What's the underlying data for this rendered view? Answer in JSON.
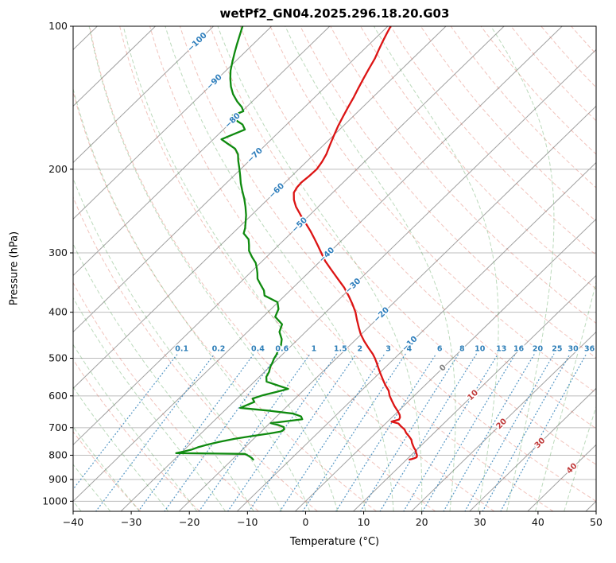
{
  "chart_data": {
    "type": "line",
    "chart_kind": "skewt_log_p_sounding",
    "title": "wetPf2_GN04.2025.296.18.20.G03",
    "xlabel": "Temperature (°C)",
    "ylabel": "Pressure (hPa)",
    "xlim": [
      -40,
      50
    ],
    "pressure_lim": [
      100,
      1050
    ],
    "x_ticks": [
      -40,
      -30,
      -20,
      -10,
      0,
      10,
      20,
      30,
      40,
      50
    ],
    "p_ticks": [
      100,
      200,
      300,
      400,
      500,
      600,
      700,
      800,
      900,
      1000
    ],
    "skew_factor": 1.03,
    "grid": true,
    "palette": {
      "temperature": "#dc1414",
      "dewpoint": "#0f8a0f",
      "isotherm": "#a0a0a0",
      "grid": "#bcbcbc",
      "dry_adiabat": "#d9604f",
      "moist_adiabat": "#4f9d4f",
      "mixing": "#2f7fb8",
      "label_cold": "#2e7ebc",
      "label_zero": "#7f7f7f",
      "label_warm": "#c03b3b",
      "frame": "#000000"
    },
    "isotherms": {
      "values": [
        -120,
        -110,
        -100,
        -90,
        -80,
        -70,
        -60,
        -50,
        -40,
        -30,
        -20,
        -10,
        0,
        10,
        20,
        30,
        40,
        50
      ]
    },
    "isotherm_labels": [
      {
        "t": -100,
        "p": 108
      },
      {
        "t": -90,
        "p": 131
      },
      {
        "t": -80,
        "p": 158
      },
      {
        "t": -70,
        "p": 187
      },
      {
        "t": -60,
        "p": 222
      },
      {
        "t": -50,
        "p": 262
      },
      {
        "t": -40,
        "p": 303
      },
      {
        "t": -30,
        "p": 352
      },
      {
        "t": -20,
        "p": 405
      },
      {
        "t": -10,
        "p": 466
      },
      {
        "t": 0,
        "p": 524
      },
      {
        "t": 10,
        "p": 598
      },
      {
        "t": 20,
        "p": 687
      },
      {
        "t": 30,
        "p": 754
      },
      {
        "t": 40,
        "p": 853
      }
    ],
    "dry_adiabats": {
      "theta_min": -30,
      "theta_max": 190,
      "step": 10
    },
    "moist_adiabats": {
      "t0_min": -40,
      "t0_max": 45,
      "step": 5
    },
    "mixing_ratio": {
      "values": [
        0.1,
        0.2,
        0.4,
        0.6,
        1,
        1.5,
        2,
        3,
        4,
        6,
        8,
        10,
        13,
        16,
        20,
        25,
        30,
        36
      ],
      "line_top_p": 490,
      "label_p": 477
    },
    "series": [
      {
        "name": "temperature",
        "units": {
          "pressure": "hPa",
          "value": "°C"
        },
        "points": [
          [
            100,
            -69.5
          ],
          [
            103,
            -69.0
          ],
          [
            107,
            -68.3
          ],
          [
            112,
            -67.4
          ],
          [
            117,
            -66.5
          ],
          [
            123,
            -65.7
          ],
          [
            129,
            -64.9
          ],
          [
            135,
            -64.1
          ],
          [
            141,
            -63.3
          ],
          [
            148,
            -62.5
          ],
          [
            155,
            -61.7
          ],
          [
            162,
            -60.9
          ],
          [
            170,
            -59.9
          ],
          [
            178,
            -58.9
          ],
          [
            186,
            -57.9
          ],
          [
            193,
            -57.3
          ],
          [
            200,
            -56.9
          ],
          [
            207,
            -57.0
          ],
          [
            213,
            -57.2
          ],
          [
            218,
            -57.1
          ],
          [
            224,
            -56.7
          ],
          [
            232,
            -55.4
          ],
          [
            240,
            -53.8
          ],
          [
            250,
            -51.5
          ],
          [
            260,
            -49.2
          ],
          [
            270,
            -47.0
          ],
          [
            280,
            -45.0
          ],
          [
            290,
            -43.1
          ],
          [
            300,
            -41.3
          ],
          [
            312,
            -39.2
          ],
          [
            325,
            -36.7
          ],
          [
            340,
            -33.9
          ],
          [
            355,
            -31.2
          ],
          [
            370,
            -28.9
          ],
          [
            385,
            -26.8
          ],
          [
            400,
            -24.9
          ],
          [
            415,
            -23.3
          ],
          [
            430,
            -21.7
          ],
          [
            445,
            -20.1
          ],
          [
            460,
            -18.3
          ],
          [
            475,
            -16.4
          ],
          [
            490,
            -14.5
          ],
          [
            500,
            -13.4
          ],
          [
            510,
            -12.4
          ],
          [
            525,
            -11.0
          ],
          [
            540,
            -9.6
          ],
          [
            555,
            -8.2
          ],
          [
            570,
            -6.8
          ],
          [
            585,
            -5.3
          ],
          [
            600,
            -4.2
          ],
          [
            615,
            -2.9
          ],
          [
            630,
            -1.6
          ],
          [
            645,
            -0.2
          ],
          [
            658,
            0.9
          ],
          [
            666,
            1.4
          ],
          [
            673,
            1.6
          ],
          [
            680,
            0.7
          ],
          [
            686,
            2.2
          ],
          [
            695,
            3.1
          ],
          [
            706,
            4.3
          ],
          [
            718,
            5.2
          ],
          [
            730,
            6.3
          ],
          [
            742,
            7.3
          ],
          [
            754,
            8.0
          ],
          [
            763,
            8.6
          ],
          [
            772,
            9.2
          ],
          [
            781,
            9.9
          ],
          [
            790,
            10.4
          ],
          [
            798,
            10.9
          ],
          [
            804,
            11.2
          ],
          [
            808,
            11.3
          ],
          [
            812,
            11.1
          ],
          [
            815,
            10.8
          ],
          [
            817,
            10.5
          ]
        ]
      },
      {
        "name": "dewpoint",
        "units": {
          "pressure": "hPa",
          "value": "°C"
        },
        "points": [
          [
            100,
            -95.0
          ],
          [
            104,
            -94.0
          ],
          [
            109,
            -92.8
          ],
          [
            114,
            -91.6
          ],
          [
            119,
            -90.4
          ],
          [
            124,
            -89.2
          ],
          [
            129,
            -87.8
          ],
          [
            134,
            -86.3
          ],
          [
            139,
            -84.6
          ],
          [
            144,
            -82.6
          ],
          [
            148,
            -80.8
          ],
          [
            151,
            -79.8
          ],
          [
            154,
            -80.9
          ],
          [
            157,
            -79.9
          ],
          [
            161,
            -77.6
          ],
          [
            165,
            -76.3
          ],
          [
            169,
            -77.5
          ],
          [
            173,
            -78.6
          ],
          [
            177,
            -76.6
          ],
          [
            181,
            -74.6
          ],
          [
            186,
            -73.1
          ],
          [
            192,
            -71.9
          ],
          [
            199,
            -70.4
          ],
          [
            206,
            -69.0
          ],
          [
            214,
            -67.5
          ],
          [
            222,
            -65.9
          ],
          [
            231,
            -64.1
          ],
          [
            240,
            -62.5
          ],
          [
            250,
            -60.9
          ],
          [
            259,
            -59.7
          ],
          [
            266,
            -58.8
          ],
          [
            273,
            -58.1
          ],
          [
            281,
            -56.2
          ],
          [
            289,
            -55.1
          ],
          [
            297,
            -54.1
          ],
          [
            306,
            -52.5
          ],
          [
            315,
            -50.8
          ],
          [
            323,
            -49.7
          ],
          [
            331,
            -48.7
          ],
          [
            340,
            -47.7
          ],
          [
            350,
            -46.1
          ],
          [
            360,
            -44.5
          ],
          [
            369,
            -43.5
          ],
          [
            381,
            -40.1
          ],
          [
            394,
            -38.7
          ],
          [
            409,
            -37.9
          ],
          [
            424,
            -35.4
          ],
          [
            440,
            -34.5
          ],
          [
            456,
            -32.8
          ],
          [
            469,
            -31.9
          ],
          [
            480,
            -31.5
          ],
          [
            491,
            -31.0
          ],
          [
            501,
            -30.7
          ],
          [
            512,
            -30.2
          ],
          [
            521,
            -29.9
          ],
          [
            534,
            -29.2
          ],
          [
            547,
            -28.8
          ],
          [
            560,
            -27.9
          ],
          [
            570,
            -25.4
          ],
          [
            580,
            -22.9
          ],
          [
            588,
            -24.3
          ],
          [
            598,
            -26.1
          ],
          [
            608,
            -27.3
          ],
          [
            618,
            -26.4
          ],
          [
            628,
            -27.2
          ],
          [
            636,
            -27.8
          ],
          [
            645,
            -22.2
          ],
          [
            654,
            -17.6
          ],
          [
            663,
            -15.8
          ],
          [
            672,
            -15.1
          ],
          [
            679,
            -17.6
          ],
          [
            685,
            -19.8
          ],
          [
            691,
            -18.2
          ],
          [
            698,
            -16.9
          ],
          [
            706,
            -16.4
          ],
          [
            713,
            -16.6
          ],
          [
            720,
            -18.2
          ],
          [
            729,
            -20.8
          ],
          [
            739,
            -23.3
          ],
          [
            750,
            -25.4
          ],
          [
            760,
            -26.9
          ],
          [
            770,
            -28.1
          ],
          [
            779,
            -28.8
          ],
          [
            786,
            -29.8
          ],
          [
            792,
            -30.8
          ],
          [
            793.5,
            -24.0
          ],
          [
            795,
            -18.8
          ],
          [
            803,
            -17.8
          ],
          [
            810,
            -17.0
          ],
          [
            817,
            -16.4
          ]
        ]
      }
    ]
  }
}
